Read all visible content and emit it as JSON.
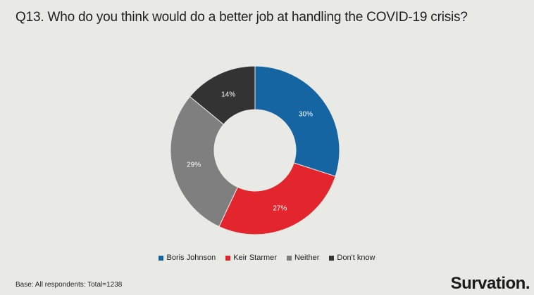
{
  "header": {
    "title": "Q13. Who do you think would do a better job at handling the COVID-19 crisis?"
  },
  "footer": {
    "base": "Base: All respondents: Total=1238",
    "brand": "Survation."
  },
  "chart_data": {
    "type": "pie",
    "donut": true,
    "title": "Q13. Who do you think would do a better job at handling the COVID-19 crisis?",
    "categories": [
      "Boris Johnson",
      "Keir Starmer",
      "Neither",
      "Don't know"
    ],
    "values": [
      30,
      27,
      29,
      14
    ],
    "labels": [
      "30%",
      "27%",
      "29%",
      "14%"
    ],
    "colors": [
      "#1565a3",
      "#e3262d",
      "#7f7f7f",
      "#333333"
    ],
    "legend_position": "bottom"
  }
}
